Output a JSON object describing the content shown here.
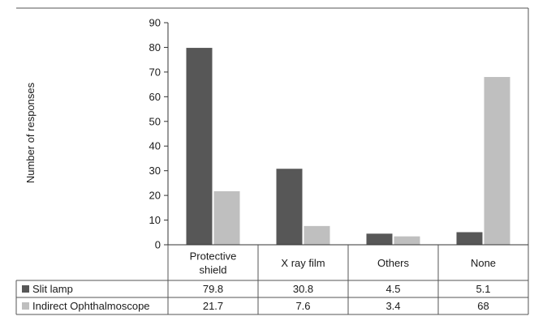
{
  "chart_data": {
    "type": "bar",
    "title": "",
    "xlabel": "",
    "ylabel": "Number of responses",
    "ylim": [
      0,
      90
    ],
    "yticks": [
      0,
      10,
      20,
      30,
      40,
      50,
      60,
      70,
      80,
      90
    ],
    "categories": [
      [
        "Protective",
        "shield"
      ],
      [
        "X ray film"
      ],
      [
        "Others"
      ],
      [
        "None"
      ]
    ],
    "series": [
      {
        "name": "Slit lamp",
        "color": "#575757",
        "values": [
          79.8,
          30.8,
          4.5,
          5.1
        ],
        "labels": [
          "79.8",
          "30.8",
          "4.5",
          "5.1"
        ]
      },
      {
        "name": "Indirect Ophthalmoscope",
        "color": "#bfbfbf",
        "values": [
          21.7,
          7.6,
          3.4,
          68
        ],
        "labels": [
          "21.7",
          "7.6",
          "3.4",
          "68"
        ]
      }
    ],
    "grid": false,
    "legend": "data-table-below"
  }
}
